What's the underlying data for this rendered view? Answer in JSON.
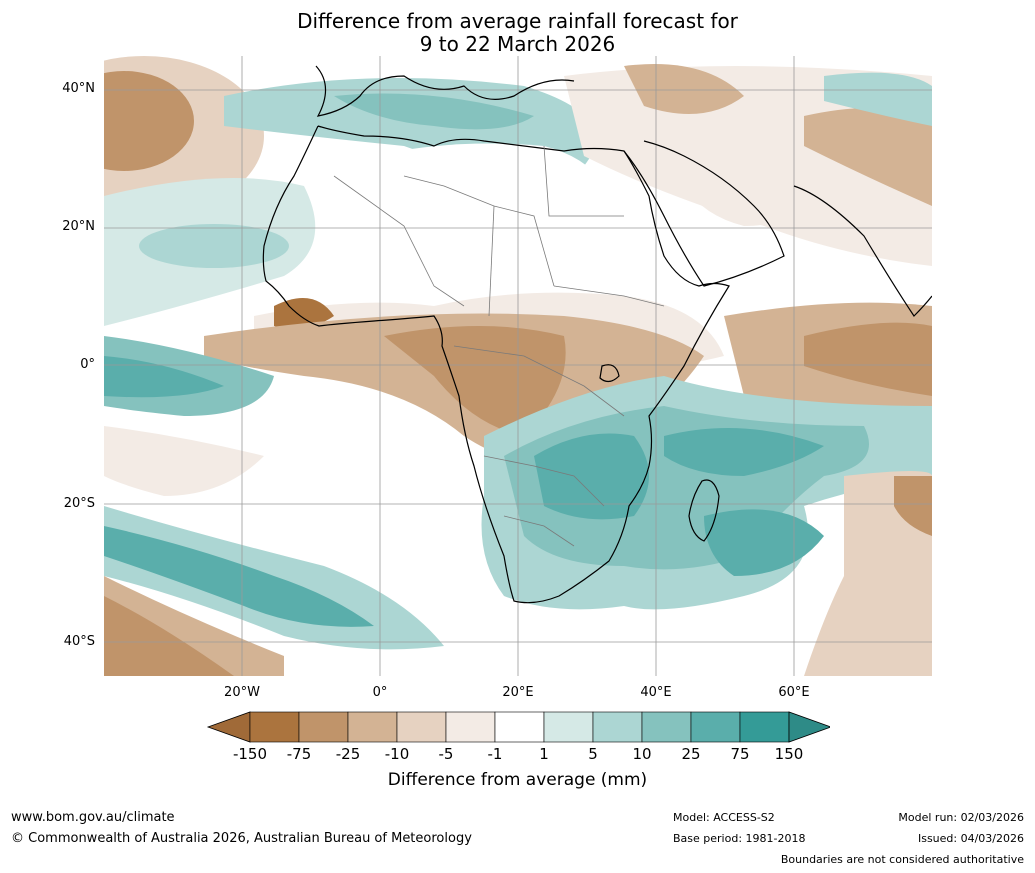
{
  "title": {
    "line1": "Difference from average rainfall forecast for",
    "line2": "9 to 22 March 2026"
  },
  "map": {
    "lat_labels": [
      "40°N",
      "20°N",
      "0°",
      "20°S",
      "40°S"
    ],
    "lon_labels": [
      "20°W",
      "0°",
      "20°E",
      "40°E",
      "60°E"
    ]
  },
  "colorbar": {
    "ticks": [
      "-150",
      "-75",
      "-25",
      "-10",
      "-5",
      "-1",
      "1",
      "5",
      "10",
      "25",
      "75",
      "150"
    ],
    "colors": [
      "#a06a38",
      "#ab743e",
      "#c0946a",
      "#d3b394",
      "#e6d2c1",
      "#f3ebe5",
      "#ffffff",
      "#d5e9e6",
      "#acd6d3",
      "#85c2be",
      "#5aaeab",
      "#349b97",
      "#2e8b87"
    ],
    "label": "Difference from average (mm)"
  },
  "footer": {
    "website": "www.bom.gov.au/climate",
    "copyright": "© Commonwealth of Australia 2026, Australian Bureau of Meteorology",
    "model": "Model: ACCESS-S2",
    "base_period": "Base period: 1981-2018",
    "model_run": "Model run: 02/03/2026",
    "issued": "Issued: 04/03/2026",
    "disclaimer": "Boundaries are not considered authoritative"
  }
}
